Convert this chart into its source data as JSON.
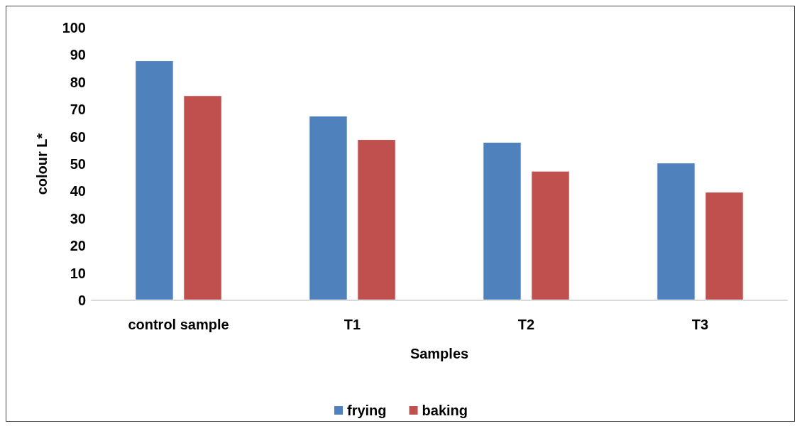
{
  "chart_data": {
    "type": "bar",
    "xlabel": "Samples",
    "ylabel": "colour L*",
    "categories": [
      "control sample",
      "T1",
      "T2",
      "T3"
    ],
    "series": [
      {
        "name": "frying",
        "color": "#4f81bd",
        "values": [
          88,
          67.7,
          58.1,
          50.5
        ]
      },
      {
        "name": "baking",
        "color": "#c0504d",
        "values": [
          75.2,
          59.1,
          47.5,
          39.8
        ]
      }
    ],
    "ylim": [
      0,
      100
    ],
    "yticks": [
      0,
      10,
      20,
      30,
      40,
      50,
      60,
      70,
      80,
      90,
      100
    ],
    "legend": "bottom",
    "grid": false
  }
}
